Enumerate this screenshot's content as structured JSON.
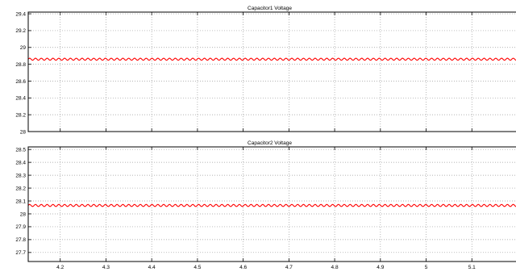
{
  "chart_data": [
    {
      "type": "line",
      "title": "Capacitor1 Voltage",
      "xlabel": "",
      "ylabel": "",
      "xlim": [
        4.13,
        5.2
      ],
      "ylim": [
        28,
        29.42
      ],
      "x_ticks": [
        "4.2",
        "4.3",
        "4.4",
        "4.5",
        "4.6",
        "4.7",
        "4.8",
        "4.9",
        "5",
        "5.1"
      ],
      "x_tick_values": [
        4.2,
        4.3,
        4.4,
        4.5,
        4.6,
        4.7,
        4.8,
        4.9,
        5.0,
        5.1
      ],
      "x_tick_labels_shown": false,
      "y_ticks": [
        "28",
        "28.2",
        "28.4",
        "28.6",
        "28.8",
        "29",
        "29.2",
        "29.4"
      ],
      "y_tick_values": [
        28,
        28.2,
        28.4,
        28.6,
        28.8,
        29,
        29.2,
        29.4
      ],
      "grid": true,
      "series": [
        {
          "color": "#ff0000",
          "mean": 28.86,
          "ripple_amplitude": 0.012,
          "ripple_cycles": 84
        }
      ]
    },
    {
      "type": "line",
      "title": "Capacitor2 Voltage",
      "xlabel": "",
      "ylabel": "",
      "xlim": [
        4.13,
        5.2
      ],
      "ylim": [
        27.63,
        28.52
      ],
      "x_ticks": [
        "4.2",
        "4.3",
        "4.4",
        "4.5",
        "4.6",
        "4.7",
        "4.8",
        "4.9",
        "5",
        "5.1"
      ],
      "x_tick_values": [
        4.2,
        4.3,
        4.4,
        4.5,
        4.6,
        4.7,
        4.8,
        4.9,
        5.0,
        5.1
      ],
      "x_tick_labels_shown": true,
      "y_ticks": [
        "27.7",
        "27.8",
        "27.9",
        "28",
        "28.1",
        "28.2",
        "28.3",
        "28.4",
        "28.5"
      ],
      "y_tick_values": [
        27.7,
        27.8,
        27.9,
        28.0,
        28.1,
        28.2,
        28.3,
        28.4,
        28.5
      ],
      "grid": true,
      "series": [
        {
          "color": "#ff0000",
          "mean": 28.065,
          "ripple_amplitude": 0.008,
          "ripple_cycles": 84
        }
      ]
    }
  ]
}
